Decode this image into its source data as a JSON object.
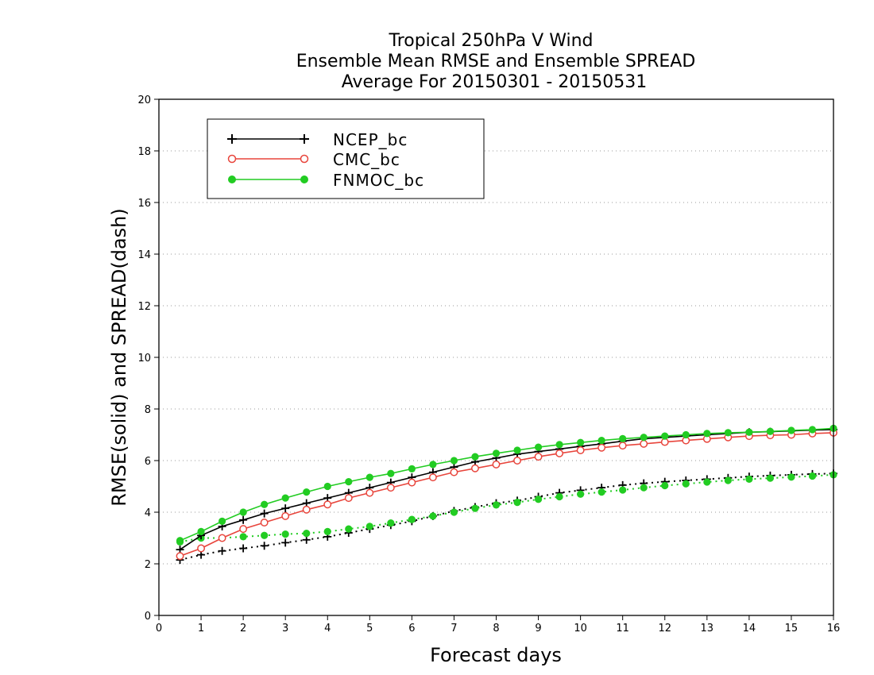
{
  "chart_data": {
    "type": "line",
    "title_lines": [
      "Tropical 250hPa V Wind",
      "Ensemble Mean RMSE and Ensemble SPREAD",
      "Average For 20150301 - 20150531"
    ],
    "xlabel": "Forecast days",
    "ylabel": "RMSE(solid) and SPREAD(dash)",
    "xlim": [
      0,
      16
    ],
    "ylim": [
      0,
      20
    ],
    "xticks": [
      0,
      1,
      2,
      3,
      4,
      5,
      6,
      7,
      8,
      9,
      10,
      11,
      12,
      13,
      14,
      15,
      16
    ],
    "yticks": [
      0,
      2,
      4,
      6,
      8,
      10,
      12,
      14,
      16,
      18,
      20
    ],
    "grid": "horizontal dotted",
    "legend_position": "top-left",
    "x": [
      0.5,
      1,
      1.5,
      2,
      2.5,
      3,
      3.5,
      4,
      4.5,
      5,
      5.5,
      6,
      6.5,
      7,
      7.5,
      8,
      8.5,
      9,
      9.5,
      10,
      10.5,
      11,
      11.5,
      12,
      12.5,
      13,
      13.5,
      14,
      14.5,
      15,
      15.5,
      16
    ],
    "series": [
      {
        "name": "NCEP_bc",
        "color": "#000000",
        "marker": "plus",
        "rmse": [
          2.55,
          3.1,
          3.45,
          3.7,
          3.95,
          4.15,
          4.35,
          4.55,
          4.75,
          4.95,
          5.15,
          5.35,
          5.55,
          5.75,
          5.95,
          6.1,
          6.25,
          6.35,
          6.45,
          6.55,
          6.65,
          6.75,
          6.85,
          6.9,
          6.95,
          7.0,
          7.05,
          7.1,
          7.12,
          7.15,
          7.18,
          7.2
        ],
        "spread": [
          2.15,
          2.35,
          2.5,
          2.6,
          2.7,
          2.82,
          2.93,
          3.05,
          3.2,
          3.35,
          3.5,
          3.65,
          3.85,
          4.05,
          4.2,
          4.35,
          4.45,
          4.6,
          4.75,
          4.85,
          4.95,
          5.05,
          5.12,
          5.18,
          5.23,
          5.28,
          5.33,
          5.38,
          5.42,
          5.45,
          5.48,
          5.5
        ]
      },
      {
        "name": "CMC_bc",
        "color": "#e8453c",
        "marker": "open-circle",
        "rmse": [
          2.3,
          2.6,
          3.0,
          3.35,
          3.6,
          3.85,
          4.1,
          4.3,
          4.55,
          4.75,
          4.95,
          5.15,
          5.35,
          5.55,
          5.7,
          5.85,
          6.0,
          6.15,
          6.28,
          6.4,
          6.5,
          6.58,
          6.65,
          6.72,
          6.78,
          6.84,
          6.9,
          6.95,
          6.98,
          7.0,
          7.05,
          7.08
        ]
      },
      {
        "name": "FNMOC_bc",
        "color": "#22cc22",
        "marker": "filled-circle",
        "rmse": [
          2.9,
          3.25,
          3.65,
          4.0,
          4.3,
          4.55,
          4.78,
          5.0,
          5.18,
          5.35,
          5.5,
          5.68,
          5.85,
          6.0,
          6.15,
          6.28,
          6.4,
          6.52,
          6.62,
          6.7,
          6.78,
          6.85,
          6.9,
          6.95,
          7.0,
          7.05,
          7.08,
          7.1,
          7.13,
          7.17,
          7.2,
          7.25
        ],
        "spread": [
          2.85,
          3.0,
          3.0,
          3.05,
          3.1,
          3.15,
          3.18,
          3.25,
          3.35,
          3.45,
          3.58,
          3.72,
          3.85,
          4.0,
          4.15,
          4.28,
          4.38,
          4.5,
          4.6,
          4.7,
          4.78,
          4.86,
          4.95,
          5.03,
          5.1,
          5.17,
          5.23,
          5.28,
          5.32,
          5.36,
          5.4,
          5.45
        ]
      }
    ]
  }
}
